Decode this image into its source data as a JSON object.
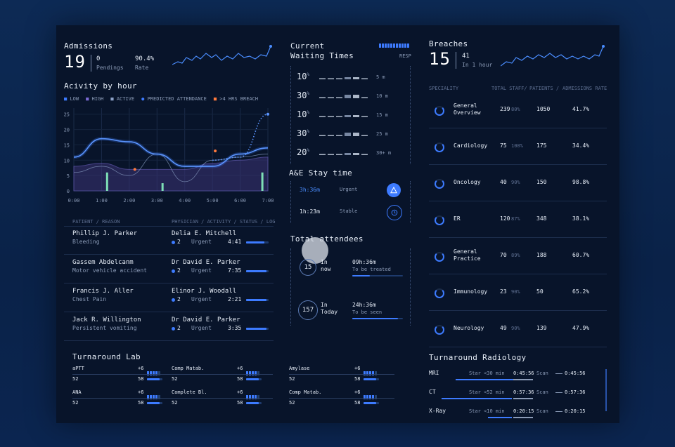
{
  "admissions": {
    "title": "Admissions",
    "value": "19",
    "pending_num": "0",
    "pending_label": "Pendings",
    "rate_num": "90.4%",
    "rate_label": "Rate"
  },
  "activity": {
    "title": "Acivity by hour",
    "legend": [
      {
        "label": "LOW",
        "color": "#3d7bff"
      },
      {
        "label": "HIGH",
        "color": "#7c6bd6"
      },
      {
        "label": "ACTIVE",
        "color": "#8da2c8"
      },
      {
        "label": "PREDICTED ATTENDANCE",
        "color": "#3d7bff"
      },
      {
        "label": ">4 HRS BREACH",
        "color": "#ff7a3d"
      }
    ]
  },
  "chart_data": {
    "type": "line",
    "x": [
      "0:00",
      "1:00",
      "2:00",
      "3:00",
      "4:00",
      "5:00",
      "6:00",
      "7:00"
    ],
    "yticks": [
      "0",
      "5",
      "10",
      "15",
      "20",
      "25"
    ],
    "ylim": [
      0,
      27
    ],
    "series": [
      {
        "name": "LOW",
        "values": [
          11,
          17,
          16,
          12,
          8,
          8,
          12,
          14
        ]
      },
      {
        "name": "HIGH",
        "values": [
          8,
          9,
          7,
          7,
          7,
          9,
          10,
          11
        ]
      },
      {
        "name": "ACTIVE",
        "values": [
          6,
          8,
          5,
          12,
          3,
          10,
          11,
          12
        ]
      },
      {
        "name": "PREDICTED ATTENDANCE",
        "values": [
          null,
          null,
          null,
          null,
          null,
          10,
          11,
          25
        ]
      }
    ],
    "breach_points": [
      [
        2.2,
        7
      ],
      [
        5.1,
        13
      ]
    ],
    "bars": [
      [
        1.2,
        6
      ],
      [
        3.2,
        2.5
      ],
      [
        6.8,
        6
      ]
    ]
  },
  "patients": {
    "headers": [
      "PATIENT / REASON",
      "PHYSICIAN / ACTIVITY / STATUS / LOG"
    ],
    "rows": [
      {
        "name": "Phillip J. Parker",
        "reason": "Bleeding",
        "physician": "Delia E. Mitchell",
        "count": "2",
        "status": "Urgent",
        "time": "4:41",
        "progress": 0.8
      },
      {
        "name": "Gassem Abdelcanm",
        "reason": "Motor vehicle accident",
        "physician": "Dr David E. Parker",
        "count": "2",
        "status": "Urgent",
        "time": "7:35",
        "progress": 0.9
      },
      {
        "name": "Francis J. Aller",
        "reason": "Chest Pain",
        "physician": "Elinor J. Woodall",
        "count": "2",
        "status": "Urgent",
        "time": "2:21",
        "progress": 0.9
      },
      {
        "name": "Jack R. Willington",
        "reason": "Persistent vomiting",
        "physician": "Dr David E. Parker",
        "count": "2",
        "status": "Urgent",
        "time": "3:35",
        "progress": 0.9
      }
    ]
  },
  "waiting": {
    "title1": "Current",
    "title2": "Waiting Times",
    "resp": "RESP",
    "rows": [
      {
        "pct": "10",
        "sup": "%",
        "label": "5 m"
      },
      {
        "pct": "30",
        "sup": "%",
        "label": "10 m"
      },
      {
        "pct": "10",
        "sup": "%",
        "label": "15 m"
      },
      {
        "pct": "30",
        "sup": "%",
        "label": "25 m"
      },
      {
        "pct": "20",
        "sup": "%",
        "label": "30+ m"
      }
    ]
  },
  "stay": {
    "title": "A&E Stay time",
    "rows": [
      {
        "time": "3h:36m",
        "label": "Urgent",
        "icon": "warning-icon"
      },
      {
        "time": "1h:23m",
        "label": "Stable",
        "icon": "clock-icon"
      }
    ]
  },
  "attendees": {
    "title": "Total attendees",
    "rows": [
      {
        "count": "15",
        "l1": "In",
        "l2": "now",
        "time": "09h:36m",
        "sub": "To be treated",
        "progress": 0.35
      },
      {
        "count": "157",
        "l1": "In",
        "l2": "Today",
        "time": "24h:36m",
        "sub": "To be seen",
        "progress": 0.9
      }
    ]
  },
  "breaches": {
    "title": "Breaches",
    "value": "15",
    "sub_num": "41",
    "sub_label": "In 1 hour",
    "headers": [
      "SPECIALITY",
      "TOTAL STAFF/",
      "PATIENTS /",
      "ADMISSIONS RATE"
    ],
    "rows": [
      {
        "name1": "General",
        "name2": "Overview",
        "staff": "239",
        "pct": "80%",
        "patients": "1050",
        "rate": "41.7%"
      },
      {
        "name1": "Cardiology",
        "name2": "",
        "staff": "75",
        "pct": "100%",
        "patients": "175",
        "rate": "34.4%"
      },
      {
        "name1": "Oncology",
        "name2": "",
        "staff": "40",
        "pct": "90%",
        "patients": "150",
        "rate": "98.8%"
      },
      {
        "name1": "ER",
        "name2": "",
        "staff": "120",
        "pct": "87%",
        "patients": "348",
        "rate": "38.1%"
      },
      {
        "name1": "General",
        "name2": "Practice",
        "staff": "70",
        "pct": "89%",
        "patients": "188",
        "rate": "60.7%"
      },
      {
        "name1": "Immunology",
        "name2": "",
        "staff": "23",
        "pct": "90%",
        "patients": "50",
        "rate": "65.2%"
      },
      {
        "name1": "Neurology",
        "name2": "",
        "staff": "49",
        "pct": "90%",
        "patients": "139",
        "rate": "47.9%"
      }
    ]
  },
  "lab": {
    "title": "Turnaround Lab",
    "items": [
      {
        "name": "aPTT",
        "delta": "+6",
        "a": "52",
        "b": "58"
      },
      {
        "name": "Comp Matab.",
        "delta": "+6",
        "a": "52",
        "b": "58"
      },
      {
        "name": "Amylase",
        "delta": "+6",
        "a": "52",
        "b": "58"
      },
      {
        "name": "ANA",
        "delta": "+6",
        "a": "52",
        "b": "58"
      },
      {
        "name": "Complete Bl.",
        "delta": "+6",
        "a": "52",
        "b": "58"
      },
      {
        "name": "Comp Matab.",
        "delta": "+6",
        "a": "52",
        "b": "58"
      }
    ]
  },
  "radiology": {
    "title": "Turnaround Radiology",
    "rows": [
      {
        "name": "MRI",
        "star": "Star <30 min",
        "t1": "0:45:56",
        "scan": "Scan",
        "t2": "0:45:56"
      },
      {
        "name": "CT",
        "star": "Star <52 min",
        "t1": "0:57:36",
        "scan": "Scan",
        "t2": "0:57:36"
      },
      {
        "name": "X-Ray",
        "star": "Star <10 min",
        "t1": "0:20:15",
        "scan": "Scan",
        "t2": "0:20:15"
      }
    ]
  }
}
